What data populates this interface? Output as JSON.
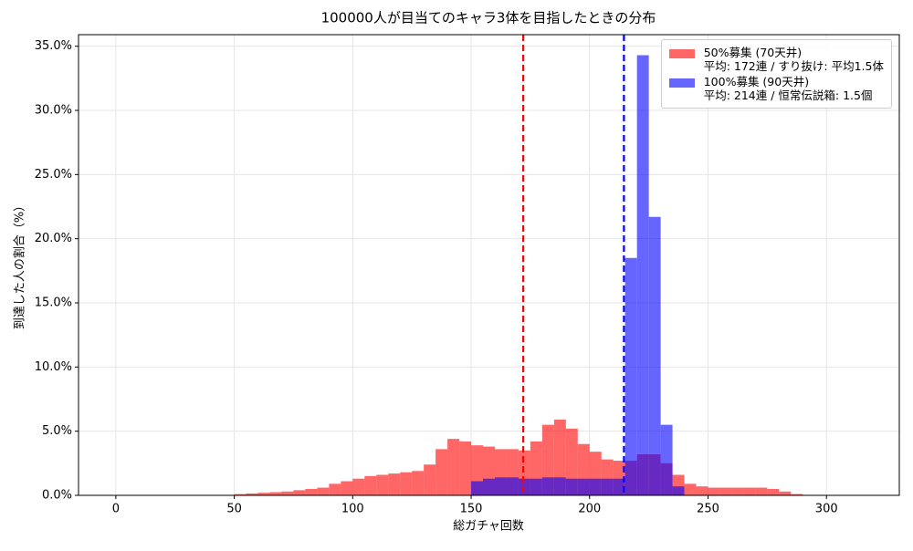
{
  "chart_data": {
    "type": "histogram",
    "title": "100000人が目当てのキャラ3体を目指したときの分布",
    "xlabel": "総ガチャ回数",
    "ylabel": "到達した人の割合（%）",
    "bins": [
      0,
      5,
      10,
      15,
      20,
      25,
      30,
      35,
      40,
      45,
      50,
      55,
      60,
      65,
      70,
      75,
      80,
      85,
      90,
      95,
      100,
      105,
      110,
      115,
      120,
      125,
      130,
      135,
      140,
      145,
      150,
      155,
      160,
      165,
      170,
      175,
      180,
      185,
      190,
      195,
      200,
      205,
      210,
      215,
      220,
      225,
      230,
      235,
      240,
      245,
      250,
      255,
      260,
      265,
      270,
      275,
      280,
      285,
      290,
      295,
      300,
      305,
      310,
      315
    ],
    "series": [
      {
        "name": "50%募集 (70天井)\n平均: 172連 / すり抜け: 平均1.5体",
        "color": "#ff0000",
        "values": [
          0,
          0,
          0,
          0,
          0,
          0,
          0,
          0,
          0,
          0,
          0.1,
          0.15,
          0.2,
          0.25,
          0.3,
          0.4,
          0.5,
          0.6,
          0.9,
          1.1,
          1.3,
          1.5,
          1.6,
          1.7,
          1.8,
          1.9,
          2.4,
          3.6,
          4.4,
          4.2,
          3.9,
          3.8,
          3.6,
          3.6,
          3.5,
          4.2,
          5.5,
          5.9,
          5.2,
          4.0,
          3.4,
          2.8,
          2.7,
          2.7,
          3.2,
          3.2,
          2.5,
          1.6,
          0.9,
          0.7,
          0.6,
          0.6,
          0.6,
          0.6,
          0.6,
          0.5,
          0.3,
          0.1,
          0,
          0,
          0,
          0,
          0
        ]
      },
      {
        "name": "100%募集 (90天井)\n平均: 214連 / 恒常伝説箱: 1.5個",
        "color": "#0000ff",
        "values": [
          0,
          0,
          0,
          0,
          0,
          0,
          0,
          0,
          0,
          0,
          0,
          0,
          0,
          0,
          0,
          0,
          0,
          0,
          0,
          0,
          0,
          0,
          0,
          0,
          0,
          0,
          0,
          0,
          0,
          0,
          1.1,
          1.3,
          1.4,
          1.4,
          1.3,
          1.3,
          1.4,
          1.4,
          1.3,
          1.3,
          1.3,
          1.3,
          1.3,
          18.5,
          34.3,
          21.7,
          5.5,
          0.7,
          0,
          0,
          0,
          0,
          0,
          0,
          0,
          0,
          0,
          0,
          0,
          0,
          0,
          0,
          0
        ]
      }
    ],
    "mean_lines": [
      {
        "x": 172,
        "color": "#ff0000"
      },
      {
        "x": 214.5,
        "color": "#0000ff"
      }
    ],
    "xlim": [
      -15.75,
      330.75
    ],
    "ylim": [
      0,
      35.9
    ],
    "xticks": [
      0,
      50,
      100,
      150,
      200,
      250,
      300
    ],
    "yticks": [
      {
        "value": 0,
        "label": "0.0%"
      },
      {
        "value": 5,
        "label": "5.0%"
      },
      {
        "value": 10,
        "label": "10.0%"
      },
      {
        "value": 15,
        "label": "15.0%"
      },
      {
        "value": 20,
        "label": "20.0%"
      },
      {
        "value": 25,
        "label": "25.0%"
      },
      {
        "value": 30,
        "label": "30.0%"
      },
      {
        "value": 35,
        "label": "35.0%"
      }
    ],
    "grid": true,
    "legend": "upper right",
    "alpha": 0.6
  }
}
